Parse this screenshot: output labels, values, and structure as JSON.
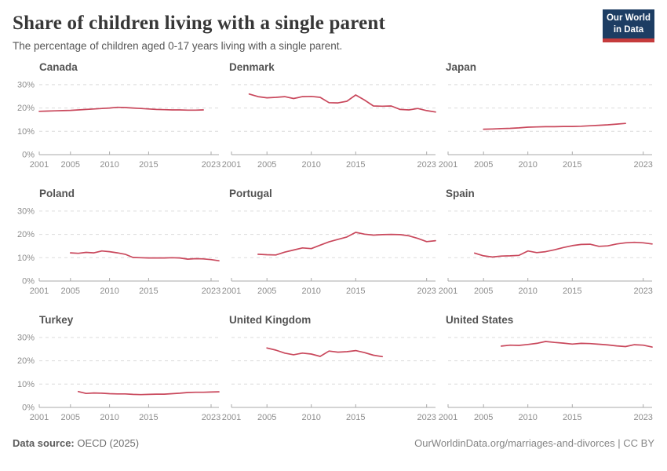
{
  "header": {
    "title": "Share of children living with a single parent",
    "subtitle": "The percentage of children aged 0-17 years living with a single parent.",
    "logo": {
      "line1": "Our World",
      "line2": "in Data",
      "bg_color": "#1d3d63",
      "accent_color": "#c53b3c"
    }
  },
  "footer": {
    "source_label": "Data source:",
    "source_value": " OECD (2025)",
    "link": "OurWorldinData.org/marriages-and-divorces | CC BY"
  },
  "chart_data": {
    "type": "line",
    "layout": "small-multiples-3x3",
    "line_color": "#c9485c",
    "grid": true,
    "ylim": [
      0,
      32
    ],
    "yticks": [
      0,
      10,
      20,
      30
    ],
    "ytick_suffix": "%",
    "xlim": [
      2001,
      2024
    ],
    "xticks": [
      2001,
      2005,
      2010,
      2015,
      2023
    ],
    "series": [
      {
        "name": "Canada",
        "points": [
          [
            2001,
            18.6
          ],
          [
            2002,
            18.7
          ],
          [
            2003,
            18.8
          ],
          [
            2004,
            18.9
          ],
          [
            2005,
            19.0
          ],
          [
            2006,
            19.2
          ],
          [
            2007,
            19.4
          ],
          [
            2008,
            19.6
          ],
          [
            2009,
            19.8
          ],
          [
            2010,
            20.0
          ],
          [
            2011,
            20.3
          ],
          [
            2012,
            20.2
          ],
          [
            2013,
            20.0
          ],
          [
            2014,
            19.8
          ],
          [
            2015,
            19.6
          ],
          [
            2016,
            19.4
          ],
          [
            2017,
            19.3
          ],
          [
            2018,
            19.2
          ],
          [
            2019,
            19.2
          ],
          [
            2020,
            19.1
          ],
          [
            2021,
            19.1
          ],
          [
            2022,
            19.2
          ]
        ]
      },
      {
        "name": "Denmark",
        "points": [
          [
            2003,
            26.0
          ],
          [
            2004,
            24.9
          ],
          [
            2005,
            24.4
          ],
          [
            2006,
            24.6
          ],
          [
            2007,
            24.9
          ],
          [
            2008,
            24.1
          ],
          [
            2009,
            24.9
          ],
          [
            2010,
            25.0
          ],
          [
            2011,
            24.6
          ],
          [
            2012,
            22.3
          ],
          [
            2013,
            22.2
          ],
          [
            2014,
            22.9
          ],
          [
            2015,
            25.6
          ],
          [
            2016,
            23.4
          ],
          [
            2017,
            20.9
          ],
          [
            2018,
            20.8
          ],
          [
            2019,
            20.9
          ],
          [
            2020,
            19.4
          ],
          [
            2021,
            19.2
          ],
          [
            2022,
            19.8
          ],
          [
            2023,
            18.9
          ],
          [
            2024,
            18.3
          ]
        ]
      },
      {
        "name": "Japan",
        "points": [
          [
            2005,
            10.9
          ],
          [
            2006,
            11.0
          ],
          [
            2007,
            11.2
          ],
          [
            2008,
            11.3
          ],
          [
            2009,
            11.5
          ],
          [
            2010,
            11.8
          ],
          [
            2011,
            11.9
          ],
          [
            2012,
            12.0
          ],
          [
            2013,
            12.0
          ],
          [
            2014,
            12.1
          ],
          [
            2015,
            12.1
          ],
          [
            2016,
            12.2
          ],
          [
            2017,
            12.4
          ],
          [
            2018,
            12.6
          ],
          [
            2019,
            12.8
          ],
          [
            2020,
            13.1
          ],
          [
            2021,
            13.4
          ]
        ]
      },
      {
        "name": "Poland",
        "points": [
          [
            2005,
            12.1
          ],
          [
            2006,
            11.9
          ],
          [
            2007,
            12.3
          ],
          [
            2008,
            12.1
          ],
          [
            2009,
            12.9
          ],
          [
            2010,
            12.6
          ],
          [
            2011,
            12.1
          ],
          [
            2012,
            11.5
          ],
          [
            2013,
            10.1
          ],
          [
            2014,
            10.0
          ],
          [
            2015,
            9.9
          ],
          [
            2016,
            9.9
          ],
          [
            2017,
            9.9
          ],
          [
            2018,
            10.0
          ],
          [
            2019,
            9.9
          ],
          [
            2020,
            9.4
          ],
          [
            2021,
            9.6
          ],
          [
            2022,
            9.5
          ],
          [
            2023,
            9.2
          ],
          [
            2024,
            8.7
          ]
        ]
      },
      {
        "name": "Portugal",
        "points": [
          [
            2004,
            11.5
          ],
          [
            2005,
            11.3
          ],
          [
            2006,
            11.2
          ],
          [
            2007,
            12.4
          ],
          [
            2008,
            13.3
          ],
          [
            2009,
            14.2
          ],
          [
            2010,
            13.9
          ],
          [
            2011,
            15.4
          ],
          [
            2012,
            16.8
          ],
          [
            2013,
            17.9
          ],
          [
            2014,
            18.9
          ],
          [
            2015,
            20.9
          ],
          [
            2016,
            20.1
          ],
          [
            2017,
            19.7
          ],
          [
            2018,
            19.9
          ],
          [
            2019,
            20.0
          ],
          [
            2020,
            19.9
          ],
          [
            2021,
            19.4
          ],
          [
            2022,
            18.3
          ],
          [
            2023,
            16.9
          ],
          [
            2024,
            17.3
          ]
        ]
      },
      {
        "name": "Spain",
        "points": [
          [
            2004,
            12.0
          ],
          [
            2005,
            10.8
          ],
          [
            2006,
            10.3
          ],
          [
            2007,
            10.7
          ],
          [
            2008,
            10.8
          ],
          [
            2009,
            11.0
          ],
          [
            2010,
            12.9
          ],
          [
            2011,
            12.2
          ],
          [
            2012,
            12.6
          ],
          [
            2013,
            13.4
          ],
          [
            2014,
            14.4
          ],
          [
            2015,
            15.2
          ],
          [
            2016,
            15.7
          ],
          [
            2017,
            15.8
          ],
          [
            2018,
            14.9
          ],
          [
            2019,
            15.1
          ],
          [
            2020,
            15.9
          ],
          [
            2021,
            16.4
          ],
          [
            2022,
            16.6
          ],
          [
            2023,
            16.4
          ],
          [
            2024,
            15.9
          ]
        ]
      },
      {
        "name": "Turkey",
        "points": [
          [
            2006,
            6.8
          ],
          [
            2007,
            6.0
          ],
          [
            2008,
            6.2
          ],
          [
            2009,
            6.1
          ],
          [
            2010,
            5.9
          ],
          [
            2011,
            5.8
          ],
          [
            2012,
            5.8
          ],
          [
            2013,
            5.6
          ],
          [
            2014,
            5.5
          ],
          [
            2015,
            5.6
          ],
          [
            2016,
            5.7
          ],
          [
            2017,
            5.7
          ],
          [
            2018,
            5.9
          ],
          [
            2019,
            6.1
          ],
          [
            2020,
            6.4
          ],
          [
            2021,
            6.5
          ],
          [
            2022,
            6.5
          ],
          [
            2023,
            6.6
          ],
          [
            2024,
            6.7
          ]
        ]
      },
      {
        "name": "United Kingdom",
        "points": [
          [
            2005,
            25.5
          ],
          [
            2006,
            24.6
          ],
          [
            2007,
            23.3
          ],
          [
            2008,
            22.6
          ],
          [
            2009,
            23.3
          ],
          [
            2010,
            22.9
          ],
          [
            2011,
            21.9
          ],
          [
            2012,
            24.2
          ],
          [
            2013,
            23.7
          ],
          [
            2014,
            23.9
          ],
          [
            2015,
            24.4
          ],
          [
            2016,
            23.5
          ],
          [
            2017,
            22.4
          ],
          [
            2018,
            21.8
          ]
        ]
      },
      {
        "name": "United States",
        "points": [
          [
            2007,
            26.3
          ],
          [
            2008,
            26.7
          ],
          [
            2009,
            26.6
          ],
          [
            2010,
            27.0
          ],
          [
            2011,
            27.5
          ],
          [
            2012,
            28.3
          ],
          [
            2013,
            27.9
          ],
          [
            2014,
            27.6
          ],
          [
            2015,
            27.2
          ],
          [
            2016,
            27.5
          ],
          [
            2017,
            27.4
          ],
          [
            2018,
            27.1
          ],
          [
            2019,
            26.8
          ],
          [
            2020,
            26.4
          ],
          [
            2021,
            26.1
          ],
          [
            2022,
            26.9
          ],
          [
            2023,
            26.7
          ],
          [
            2024,
            25.9
          ]
        ]
      }
    ]
  }
}
